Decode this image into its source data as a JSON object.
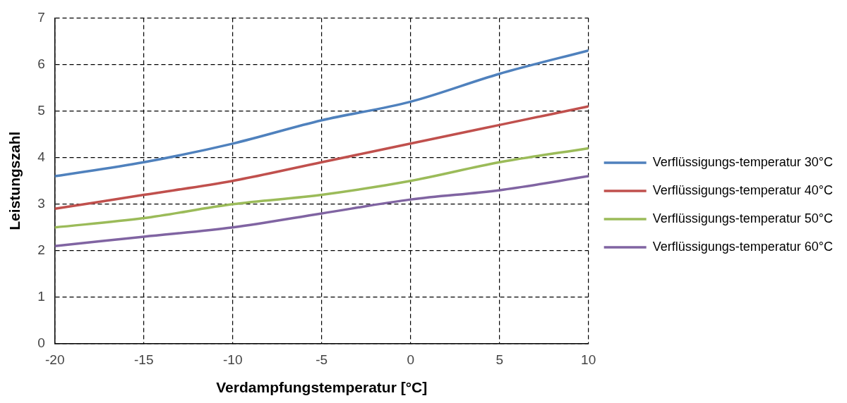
{
  "chart_data": {
    "type": "line",
    "xlabel": "Verdampfungstemperatur [°C]",
    "ylabel": "Leistungszahl",
    "x": [
      -20,
      -15,
      -10,
      -5,
      0,
      5,
      10
    ],
    "xlim": [
      -20,
      10
    ],
    "xticks": [
      -20,
      -15,
      -10,
      -5,
      0,
      5,
      10
    ],
    "ylim": [
      0,
      7
    ],
    "yticks": [
      0,
      1,
      2,
      3,
      4,
      5,
      6,
      7
    ],
    "grid": true,
    "legend": "right",
    "marker": "none",
    "line_style": "solid",
    "series": [
      {
        "name": "Verflüssigungs-temperatur 30°C",
        "color": "#4f81bd",
        "values": [
          3.6,
          3.9,
          4.3,
          4.8,
          5.2,
          5.8,
          6.3
        ]
      },
      {
        "name": "Verflüssigungs-temperatur 40°C",
        "color": "#c0504d",
        "values": [
          2.9,
          3.2,
          3.5,
          3.9,
          4.3,
          4.7,
          5.1
        ]
      },
      {
        "name": "Verflüssigungs-temperatur 50°C",
        "color": "#9bbb59",
        "values": [
          2.5,
          2.7,
          3.0,
          3.2,
          3.5,
          3.9,
          4.2
        ]
      },
      {
        "name": "Verflüssigungs-temperatur 60°C",
        "color": "#8064a2",
        "values": [
          2.1,
          2.3,
          2.5,
          2.8,
          3.1,
          3.3,
          3.6
        ]
      }
    ]
  }
}
